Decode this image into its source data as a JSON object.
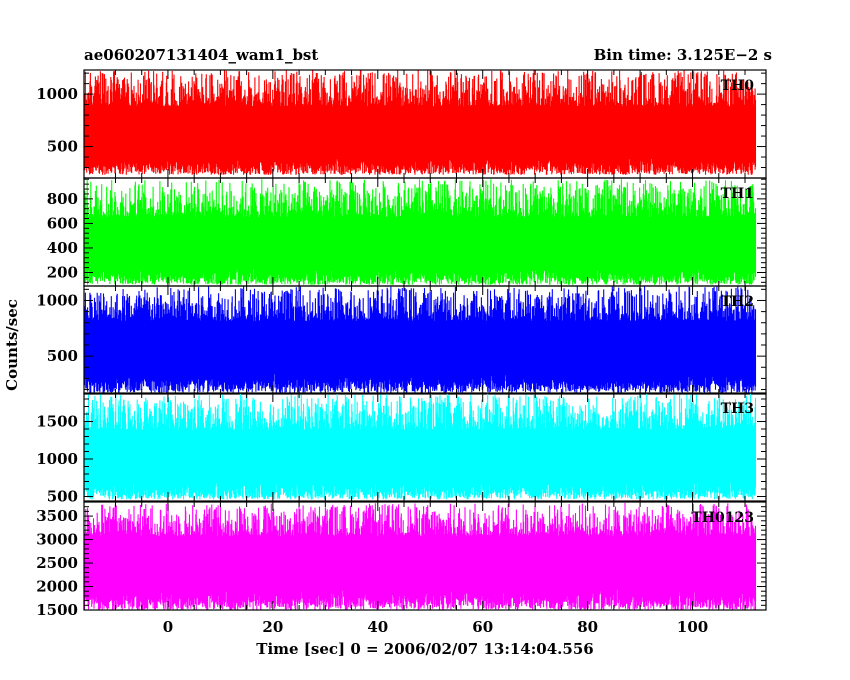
{
  "chart_data": {
    "type": "line",
    "title": "ae060207131404_wam1_bst",
    "subtitle": "Bin time: 3.125E−2 s",
    "xlabel": "Time [sec] 0 = 2006/02/07 13:14:04.556",
    "ylabel": "Counts/sec",
    "xlim": [
      -16,
      114
    ],
    "data_x_range": [
      -16,
      112
    ],
    "x_ticks": [
      0,
      20,
      40,
      60,
      80,
      100
    ],
    "panels": [
      {
        "name": "TH0",
        "color": "#ff0000",
        "ylim": [
          200,
          1230
        ],
        "y_ticks": [
          500,
          1000
        ],
        "series_min": 230,
        "series_max": 1230,
        "baseline": 600
      },
      {
        "name": "TH1",
        "color": "#00ff00",
        "ylim": [
          90,
          970
        ],
        "y_ticks": [
          200,
          400,
          600,
          800
        ],
        "series_min": 100,
        "series_max": 960,
        "baseline": 400
      },
      {
        "name": "TH2",
        "color": "#0000ff",
        "ylim": [
          160,
          1130
        ],
        "y_ticks": [
          500,
          1000
        ],
        "series_min": 170,
        "series_max": 1130,
        "baseline": 560
      },
      {
        "name": "TH3",
        "color": "#00ffff",
        "ylim": [
          440,
          1880
        ],
        "y_ticks": [
          500,
          1000,
          1500
        ],
        "series_min": 460,
        "series_max": 1870,
        "baseline": 1000
      },
      {
        "name": "TH0123",
        "color": "#ff00ff",
        "ylim": [
          1500,
          3800
        ],
        "y_ticks": [
          1500,
          2000,
          2500,
          3000,
          3500
        ],
        "series_min": 1500,
        "series_max": 3780,
        "baseline": 2500
      }
    ]
  }
}
